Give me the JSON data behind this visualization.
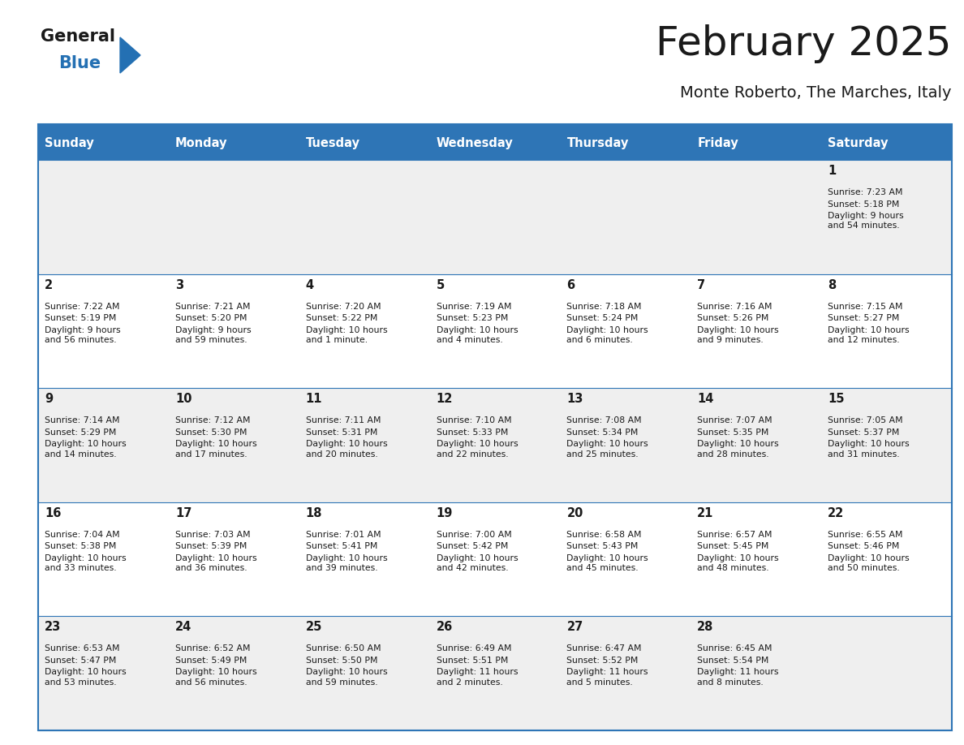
{
  "title": "February 2025",
  "subtitle": "Monte Roberto, The Marches, Italy",
  "header_bg": "#2E75B6",
  "header_text_color": "#FFFFFF",
  "cell_bg_odd": "#EFEFEF",
  "cell_bg_even": "#FFFFFF",
  "border_color": "#2E75B6",
  "text_color": "#1a1a1a",
  "day_names": [
    "Sunday",
    "Monday",
    "Tuesday",
    "Wednesday",
    "Thursday",
    "Friday",
    "Saturday"
  ],
  "days": [
    {
      "day": 1,
      "col": 6,
      "row": 0,
      "sunrise": "7:23 AM",
      "sunset": "5:18 PM",
      "daylight": "9 hours\nand 54 minutes."
    },
    {
      "day": 2,
      "col": 0,
      "row": 1,
      "sunrise": "7:22 AM",
      "sunset": "5:19 PM",
      "daylight": "9 hours\nand 56 minutes."
    },
    {
      "day": 3,
      "col": 1,
      "row": 1,
      "sunrise": "7:21 AM",
      "sunset": "5:20 PM",
      "daylight": "9 hours\nand 59 minutes."
    },
    {
      "day": 4,
      "col": 2,
      "row": 1,
      "sunrise": "7:20 AM",
      "sunset": "5:22 PM",
      "daylight": "10 hours\nand 1 minute."
    },
    {
      "day": 5,
      "col": 3,
      "row": 1,
      "sunrise": "7:19 AM",
      "sunset": "5:23 PM",
      "daylight": "10 hours\nand 4 minutes."
    },
    {
      "day": 6,
      "col": 4,
      "row": 1,
      "sunrise": "7:18 AM",
      "sunset": "5:24 PM",
      "daylight": "10 hours\nand 6 minutes."
    },
    {
      "day": 7,
      "col": 5,
      "row": 1,
      "sunrise": "7:16 AM",
      "sunset": "5:26 PM",
      "daylight": "10 hours\nand 9 minutes."
    },
    {
      "day": 8,
      "col": 6,
      "row": 1,
      "sunrise": "7:15 AM",
      "sunset": "5:27 PM",
      "daylight": "10 hours\nand 12 minutes."
    },
    {
      "day": 9,
      "col": 0,
      "row": 2,
      "sunrise": "7:14 AM",
      "sunset": "5:29 PM",
      "daylight": "10 hours\nand 14 minutes."
    },
    {
      "day": 10,
      "col": 1,
      "row": 2,
      "sunrise": "7:12 AM",
      "sunset": "5:30 PM",
      "daylight": "10 hours\nand 17 minutes."
    },
    {
      "day": 11,
      "col": 2,
      "row": 2,
      "sunrise": "7:11 AM",
      "sunset": "5:31 PM",
      "daylight": "10 hours\nand 20 minutes."
    },
    {
      "day": 12,
      "col": 3,
      "row": 2,
      "sunrise": "7:10 AM",
      "sunset": "5:33 PM",
      "daylight": "10 hours\nand 22 minutes."
    },
    {
      "day": 13,
      "col": 4,
      "row": 2,
      "sunrise": "7:08 AM",
      "sunset": "5:34 PM",
      "daylight": "10 hours\nand 25 minutes."
    },
    {
      "day": 14,
      "col": 5,
      "row": 2,
      "sunrise": "7:07 AM",
      "sunset": "5:35 PM",
      "daylight": "10 hours\nand 28 minutes."
    },
    {
      "day": 15,
      "col": 6,
      "row": 2,
      "sunrise": "7:05 AM",
      "sunset": "5:37 PM",
      "daylight": "10 hours\nand 31 minutes."
    },
    {
      "day": 16,
      "col": 0,
      "row": 3,
      "sunrise": "7:04 AM",
      "sunset": "5:38 PM",
      "daylight": "10 hours\nand 33 minutes."
    },
    {
      "day": 17,
      "col": 1,
      "row": 3,
      "sunrise": "7:03 AM",
      "sunset": "5:39 PM",
      "daylight": "10 hours\nand 36 minutes."
    },
    {
      "day": 18,
      "col": 2,
      "row": 3,
      "sunrise": "7:01 AM",
      "sunset": "5:41 PM",
      "daylight": "10 hours\nand 39 minutes."
    },
    {
      "day": 19,
      "col": 3,
      "row": 3,
      "sunrise": "7:00 AM",
      "sunset": "5:42 PM",
      "daylight": "10 hours\nand 42 minutes."
    },
    {
      "day": 20,
      "col": 4,
      "row": 3,
      "sunrise": "6:58 AM",
      "sunset": "5:43 PM",
      "daylight": "10 hours\nand 45 minutes."
    },
    {
      "day": 21,
      "col": 5,
      "row": 3,
      "sunrise": "6:57 AM",
      "sunset": "5:45 PM",
      "daylight": "10 hours\nand 48 minutes."
    },
    {
      "day": 22,
      "col": 6,
      "row": 3,
      "sunrise": "6:55 AM",
      "sunset": "5:46 PM",
      "daylight": "10 hours\nand 50 minutes."
    },
    {
      "day": 23,
      "col": 0,
      "row": 4,
      "sunrise": "6:53 AM",
      "sunset": "5:47 PM",
      "daylight": "10 hours\nand 53 minutes."
    },
    {
      "day": 24,
      "col": 1,
      "row": 4,
      "sunrise": "6:52 AM",
      "sunset": "5:49 PM",
      "daylight": "10 hours\nand 56 minutes."
    },
    {
      "day": 25,
      "col": 2,
      "row": 4,
      "sunrise": "6:50 AM",
      "sunset": "5:50 PM",
      "daylight": "10 hours\nand 59 minutes."
    },
    {
      "day": 26,
      "col": 3,
      "row": 4,
      "sunrise": "6:49 AM",
      "sunset": "5:51 PM",
      "daylight": "11 hours\nand 2 minutes."
    },
    {
      "day": 27,
      "col": 4,
      "row": 4,
      "sunrise": "6:47 AM",
      "sunset": "5:52 PM",
      "daylight": "11 hours\nand 5 minutes."
    },
    {
      "day": 28,
      "col": 5,
      "row": 4,
      "sunrise": "6:45 AM",
      "sunset": "5:54 PM",
      "daylight": "11 hours\nand 8 minutes."
    }
  ],
  "logo_color_general": "#1a1a1a",
  "logo_color_blue": "#2470B3",
  "logo_triangle_color": "#2470B3",
  "fig_width": 11.88,
  "fig_height": 9.18,
  "dpi": 100
}
